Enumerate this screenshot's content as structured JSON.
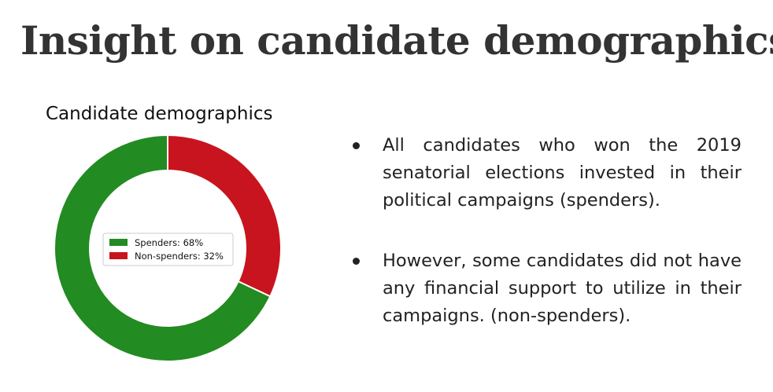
{
  "slide": {
    "title": "Insight on candidate demographics"
  },
  "bullets": [
    {
      "text": "All candidates who won the 2019 senatorial elections invested in their political campaigns (spenders)."
    },
    {
      "text": "However, some candidates did not have any financial support to utilize in their campaigns.  (non-spenders)."
    }
  ],
  "chart_data": {
    "type": "pie",
    "donut": true,
    "title": "Candidate demographics",
    "series": [
      {
        "name": "Spenders",
        "value": 68,
        "label": "Spenders: 68%",
        "color": "#228B22"
      },
      {
        "name": "Non-spenders",
        "value": 32,
        "label": "Non-spenders: 32%",
        "color": "#C8141E"
      }
    ],
    "start_angle": "12 o'clock",
    "direction": "clockwise from non-spenders",
    "legend_position": "center"
  }
}
